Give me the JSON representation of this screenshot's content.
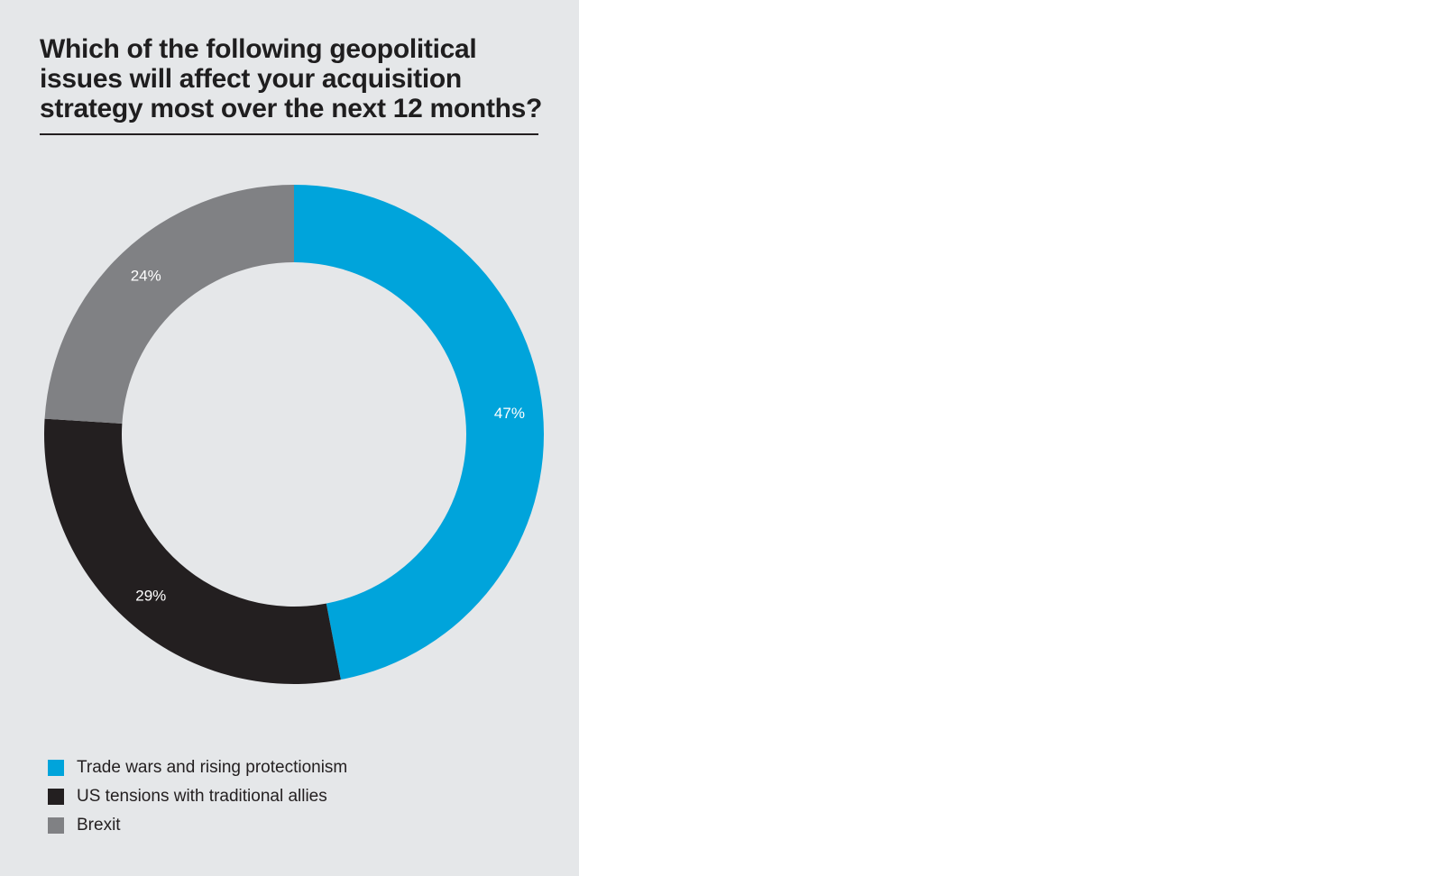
{
  "chart_data": {
    "type": "pie",
    "variant": "donut",
    "title": "Which of the following geopolitical issues will affect your acquisition strategy most over the next 12 months?",
    "legend_position": "bottom-left",
    "unit": "%",
    "slices": [
      {
        "label": "Trade wars and rising protectionism",
        "value": 47,
        "display": "47%",
        "color": "#00a4db"
      },
      {
        "label": "US tensions with traditional allies",
        "value": 29,
        "display": "29%",
        "color": "#231f20"
      },
      {
        "label": "Brexit",
        "value": 24,
        "display": "24%",
        "color": "#808184"
      }
    ]
  },
  "colors": {
    "panel_background": "#e5e7e9",
    "page_background": "#ffffff",
    "text": "#231f20"
  }
}
